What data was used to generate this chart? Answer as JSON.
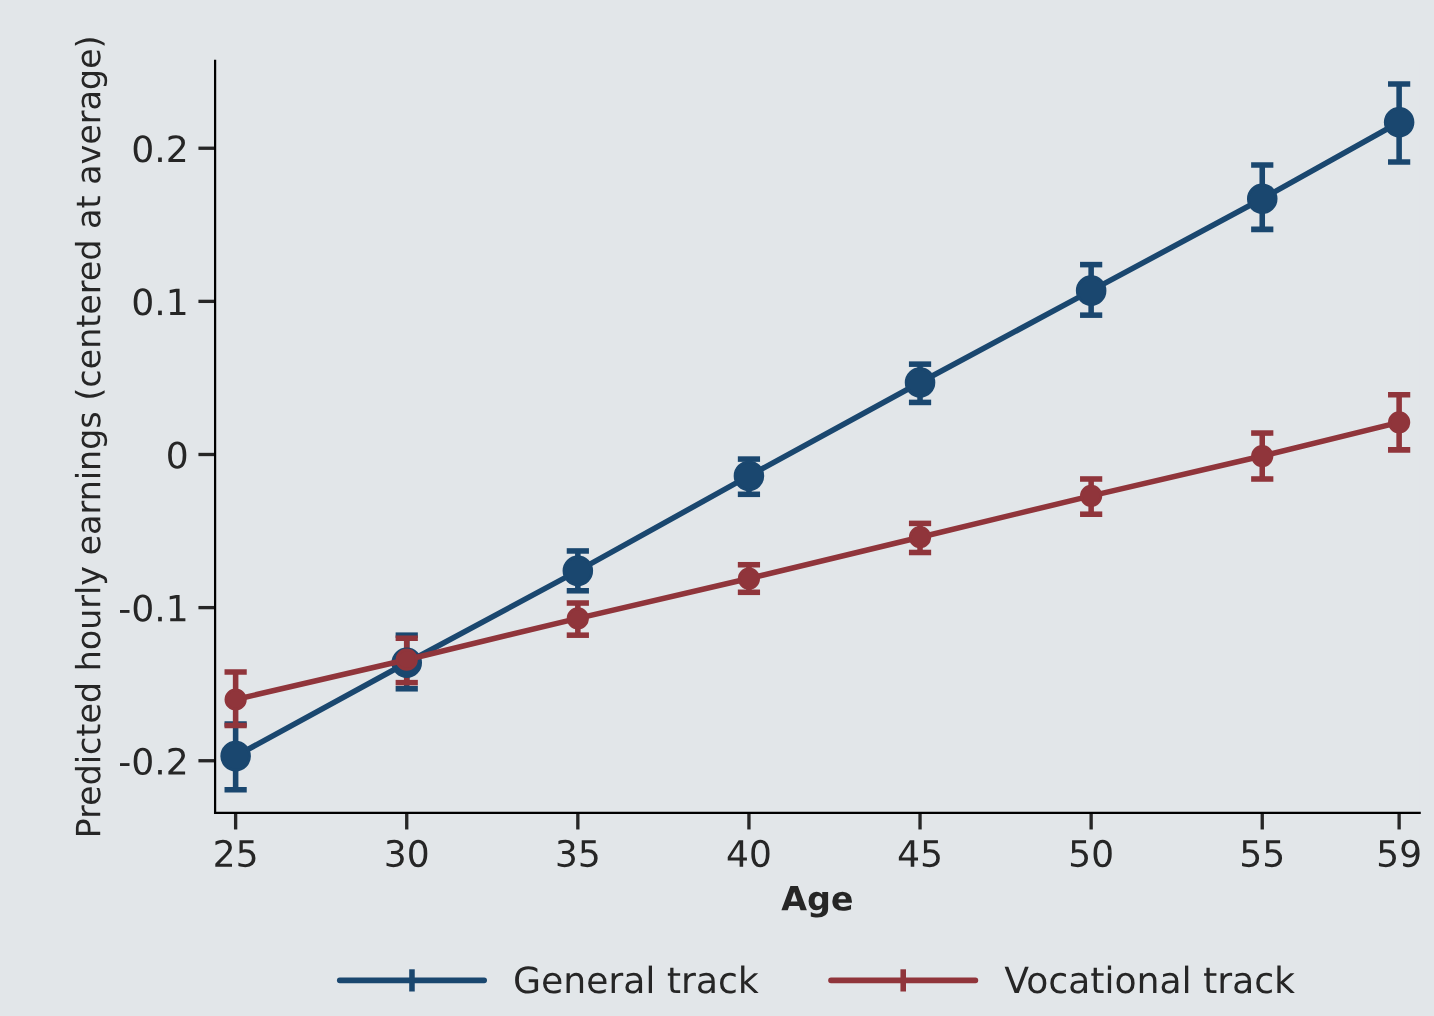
{
  "chart_data": {
    "type": "line",
    "xlabel": "Age",
    "ylabel": "Predicted hourly earnings (centered at average)",
    "x": [
      25,
      30,
      35,
      40,
      45,
      50,
      55,
      59
    ],
    "series": [
      {
        "name": "General track",
        "color": "#1a476f",
        "values": [
          -0.197,
          -0.136,
          -0.076,
          -0.014,
          0.047,
          0.107,
          0.167,
          0.217
        ],
        "errors": [
          [
            -0.219,
            -0.176
          ],
          [
            -0.153,
            -0.118
          ],
          [
            -0.089,
            -0.063
          ],
          [
            -0.026,
            -0.003
          ],
          [
            0.034,
            0.059
          ],
          [
            0.091,
            0.124
          ],
          [
            0.147,
            0.189
          ],
          [
            0.191,
            0.242
          ]
        ]
      },
      {
        "name": "Vocational track",
        "color": "#90353b",
        "values": [
          -0.16,
          -0.134,
          -0.107,
          -0.081,
          -0.054,
          -0.027,
          -0.001,
          0.021
        ],
        "errors": [
          [
            -0.177,
            -0.142
          ],
          [
            -0.149,
            -0.12
          ],
          [
            -0.118,
            -0.097
          ],
          [
            -0.09,
            -0.072
          ],
          [
            -0.064,
            -0.045
          ],
          [
            -0.039,
            -0.016
          ],
          [
            -0.016,
            0.014
          ],
          [
            0.003,
            0.039
          ]
        ]
      }
    ],
    "xlim": [
      24.4,
      59.6
    ],
    "ylim": [
      -0.234,
      0.257
    ],
    "xticks": [
      25,
      30,
      35,
      40,
      45,
      50,
      55,
      59
    ],
    "yticks": [
      -0.2,
      -0.1,
      0,
      0.1,
      0.2
    ],
    "marker": "circle",
    "line_style": "solid",
    "grid": false,
    "legend": "bottom"
  }
}
